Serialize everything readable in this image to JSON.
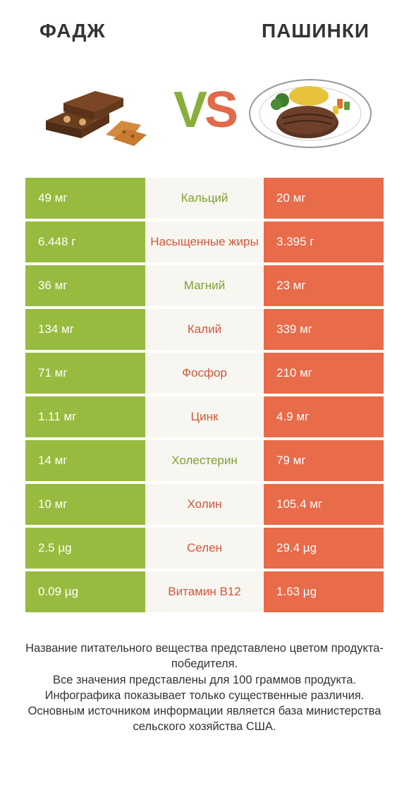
{
  "colors": {
    "green": "#97bb3e",
    "red": "#e86b4a",
    "label_green": "#7fa12f",
    "label_red": "#d1573a",
    "mid_bg": "#f7f6f1",
    "text": "#333333",
    "white": "#ffffff"
  },
  "header": {
    "left_title": "ФАДЖ",
    "right_title": "ПАШИНКИ"
  },
  "vs": {
    "v": "V",
    "s": "S"
  },
  "rows": [
    {
      "left": "49 мг",
      "label": "Кальций",
      "winner": "green",
      "right": "20 мг"
    },
    {
      "left": "6.448 г",
      "label": "Насыщенные жиры",
      "winner": "red",
      "right": "3.395 г"
    },
    {
      "left": "36 мг",
      "label": "Магний",
      "winner": "green",
      "right": "23 мг"
    },
    {
      "left": "134 мг",
      "label": "Калий",
      "winner": "red",
      "right": "339 мг"
    },
    {
      "left": "71 мг",
      "label": "Фосфор",
      "winner": "red",
      "right": "210 мг"
    },
    {
      "left": "1.11 мг",
      "label": "Цинк",
      "winner": "red",
      "right": "4.9 мг"
    },
    {
      "left": "14 мг",
      "label": "Холестерин",
      "winner": "green",
      "right": "79 мг"
    },
    {
      "left": "10 мг",
      "label": "Холин",
      "winner": "red",
      "right": "105.4 мг"
    },
    {
      "left": "2.5 µg",
      "label": "Селен",
      "winner": "red",
      "right": "29.4 µg"
    },
    {
      "left": "0.09 µg",
      "label": "Витамин B12",
      "winner": "red",
      "right": "1.63 µg"
    }
  ],
  "footer": "Название питательного вещества представлено цветом продукта-победителя.\nВсе значения представлены для 100 граммов продукта.\nИнфографика показывает только существенные различия.\nОсновным источником информации является база министерства сельского хозяйства США."
}
